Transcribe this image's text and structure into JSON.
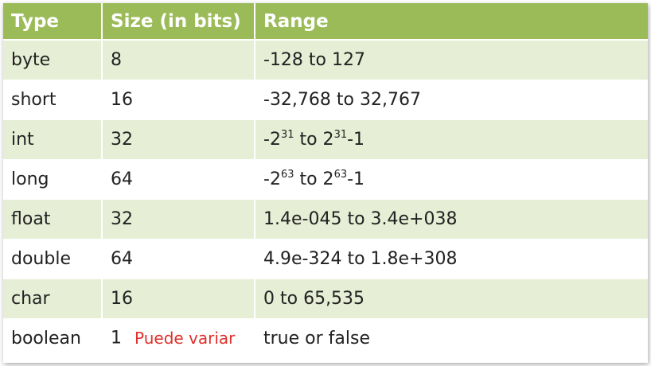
{
  "table": {
    "headers": [
      "Type",
      "Size (in bits)",
      "Range"
    ],
    "rows": [
      {
        "type": "byte",
        "size": "8",
        "range": "-128 to 127"
      },
      {
        "type": "short",
        "size": "16",
        "range": "-32,768 to 32,767"
      },
      {
        "type": "int",
        "size": "32",
        "range_parts": {
          "a": "-2",
          "a_exp": "31",
          "mid": " to 2",
          "b_exp": "31",
          "end": "-1"
        }
      },
      {
        "type": "long",
        "size": "64",
        "range_parts": {
          "a": "-2",
          "a_exp": "63",
          "mid": " to 2",
          "b_exp": "63",
          "end": "-1"
        }
      },
      {
        "type": "float",
        "size": "32",
        "range": "1.4e-045 to 3.4e+038"
      },
      {
        "type": "double",
        "size": "64",
        "range": "4.9e-324 to 1.8e+308"
      },
      {
        "type": "char",
        "size": "16",
        "range": "0 to 65,535"
      },
      {
        "type": "boolean",
        "size": "1",
        "note": "Puede variar",
        "range": "true or false"
      }
    ]
  },
  "colors": {
    "header_bg": "#9bbb59",
    "band_bg": "#e6eed5",
    "note_text": "#e0302a"
  }
}
